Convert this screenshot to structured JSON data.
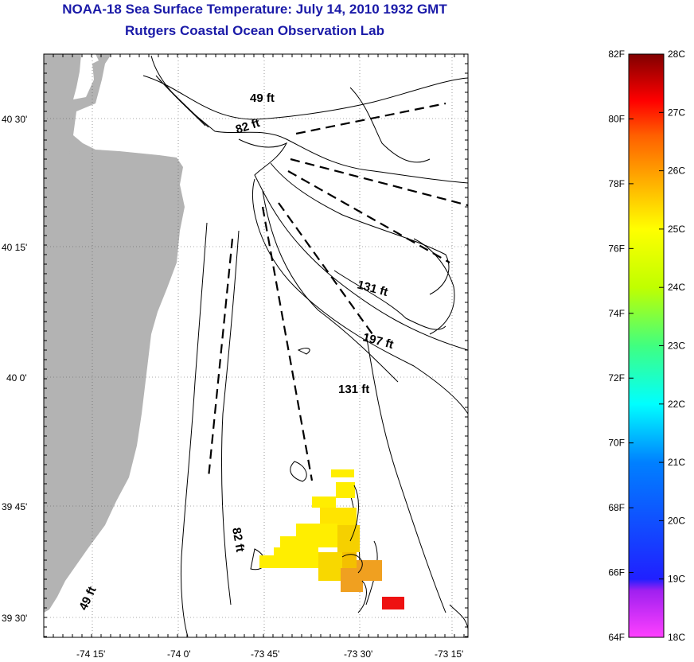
{
  "title": "NOAA-18 Sea Surface Temperature:  July 14, 2010 1932 GMT",
  "subtitle": "Rutgers Coastal Ocean Observation Lab",
  "map": {
    "lat_ticks": [
      "40 30'",
      "40 15'",
      "40 0'",
      "39 45'",
      "39 30'"
    ],
    "lon_ticks": [
      "-74 15'",
      "-74 0'",
      "-73 45'",
      "-73 30'",
      "-73 15'"
    ],
    "contour_labels": [
      "49 ft",
      "82 ft",
      "131 ft",
      "197 ft",
      "131 ft",
      "82 ft",
      "49 ft"
    ],
    "land_color": "#b3b3b3",
    "temperature_patch": {
      "dominant_temp_c": 24.5,
      "warm_spot_temp_c": 26.8,
      "colors": [
        "#ffff00",
        "#ffea00",
        "#ffd800",
        "#f5c000",
        "#f0a020",
        "#ee1111"
      ]
    }
  },
  "colorbar": {
    "fahrenheit_labels": [
      "82F",
      "80F",
      "78F",
      "76F",
      "74F",
      "72F",
      "70F",
      "68F",
      "66F",
      "64F"
    ],
    "celsius_labels": [
      "28C",
      "27C",
      "26C",
      "25C",
      "24C",
      "23C",
      "22C",
      "21C",
      "20C",
      "19C",
      "18C"
    ],
    "range_c": [
      18,
      28
    ],
    "range_f": [
      64,
      82
    ]
  }
}
